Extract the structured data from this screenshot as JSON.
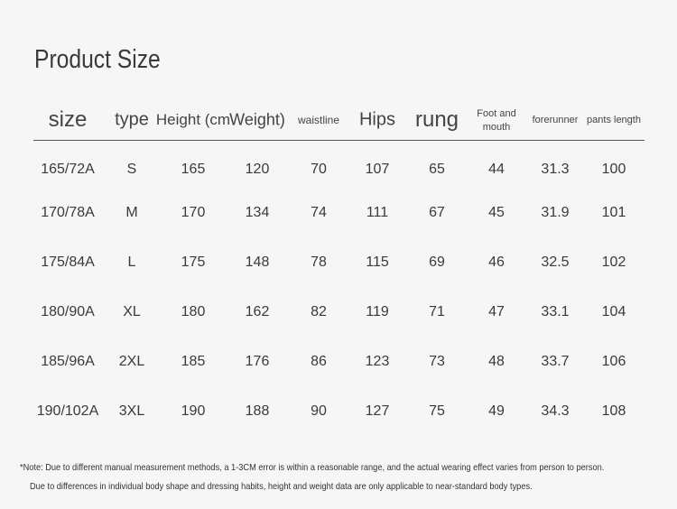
{
  "title": "Product Size",
  "table": {
    "headers": [
      "size",
      "type",
      "Height (cm",
      "Weight)",
      "waistline",
      "Hips",
      "rung",
      "Foot and mouth",
      "forerunner",
      "pants length"
    ],
    "rows": [
      [
        "165/72A",
        "S",
        165,
        120,
        70,
        107,
        65,
        44,
        31.3,
        100
      ],
      [
        "170/78A",
        "M",
        170,
        134,
        74,
        111,
        67,
        45,
        31.9,
        101
      ],
      [
        "175/84A",
        "L",
        175,
        148,
        78,
        115,
        69,
        46,
        32.5,
        102
      ],
      [
        "180/90A",
        "XL",
        180,
        162,
        82,
        119,
        71,
        47,
        33.1,
        104
      ],
      [
        "185/96A",
        "2XL",
        185,
        176,
        86,
        123,
        73,
        48,
        33.7,
        106
      ],
      [
        "190/102A",
        "3XL",
        190,
        188,
        90,
        127,
        75,
        49,
        34.3,
        108
      ]
    ]
  },
  "notes": [
    "*Note: Due to different manual measurement methods, a 1-3CM error is within a reasonable range, and the actual wearing effect varies from person to person.",
    "Due to differences in individual body shape and dressing habits, height and weight data are only applicable to near-standard body types."
  ]
}
